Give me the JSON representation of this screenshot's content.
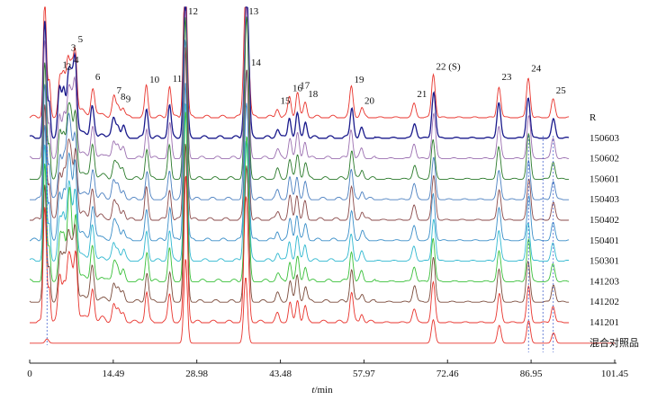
{
  "chart_data": {
    "type": "line",
    "title": "",
    "xlabel": "t/min",
    "xlabel_italic": "t",
    "xlabel_unit": "/min",
    "ylabel": "",
    "xlim": [
      0,
      101.45
    ],
    "xticks": [
      0,
      14.49,
      28.98,
      43.48,
      57.97,
      72.46,
      86.95,
      101.45
    ],
    "xtick_labels": [
      "0",
      "14.49",
      "28.98",
      "43.48",
      "57.97",
      "72.46",
      "86.95",
      "101.45"
    ],
    "grid": false,
    "trace_labels": [
      "R",
      "150603",
      "150602",
      "150601",
      "150403",
      "150402",
      "150401",
      "150301",
      "141203",
      "141202",
      "141201",
      "混合对照品"
    ],
    "trace_colors": [
      "#e8332c",
      "#1a1a8c",
      "#9b6fb0",
      "#2a7a2a",
      "#4a7fc0",
      "#8a4a4a",
      "#3a8ec8",
      "#30b8d0",
      "#3ac03a",
      "#7a4a3a",
      "#e8332c",
      "#e8332c"
    ],
    "peak_labels": [
      "1",
      "2",
      "3",
      "4",
      "5",
      "6",
      "7",
      "8",
      "9",
      "10",
      "11",
      "12",
      "13",
      "14",
      "15",
      "16",
      "17",
      "18",
      "19",
      "20",
      "21",
      "22 (S)",
      "23",
      "24",
      "25"
    ],
    "peaks": {
      "rt": [
        5.2,
        5.9,
        6.7,
        7.2,
        7.9,
        10.9,
        14.6,
        15.3,
        16.2,
        20.3,
        24.3,
        27.0,
        37.5,
        37.9,
        43.0,
        45.1,
        46.4,
        47.8,
        55.8,
        57.6,
        66.7,
        70.0,
        81.4,
        86.5,
        90.8
      ],
      "height": [
        0.52,
        0.5,
        0.72,
        0.58,
        0.82,
        0.38,
        0.22,
        0.15,
        0.12,
        0.35,
        0.36,
        1.8,
        1.4,
        0.55,
        0.1,
        0.25,
        0.28,
        0.18,
        0.35,
        0.1,
        0.18,
        0.5,
        0.38,
        0.48,
        0.22
      ],
      "width": [
        0.3,
        0.3,
        0.3,
        0.3,
        0.3,
        0.32,
        0.3,
        0.3,
        0.3,
        0.28,
        0.28,
        0.3,
        0.32,
        0.28,
        0.3,
        0.28,
        0.28,
        0.28,
        0.3,
        0.28,
        0.32,
        0.32,
        0.32,
        0.32,
        0.32
      ]
    },
    "solvent_peaks": {
      "rt": [
        2.5,
        2.8,
        3.4
      ],
      "height": [
        0.95,
        0.75,
        0.4
      ]
    },
    "reference_trace_peaks": [
      12,
      13,
      22,
      23,
      24,
      25
    ]
  }
}
